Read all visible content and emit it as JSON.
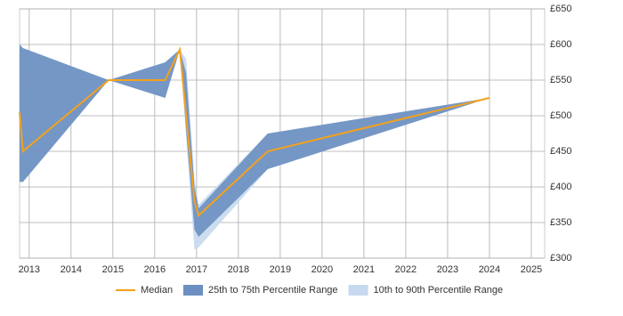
{
  "chart_data": {
    "type": "band-line",
    "x": [
      2012.77,
      2012.85,
      2014.9,
      2016.25,
      2016.6,
      2016.75,
      2016.95,
      2017.05,
      2018.7,
      2024.0
    ],
    "bands": [
      {
        "name": "10th to 90th Percentile Range",
        "color": "#c6d9ee",
        "lower": [
          407,
          407,
          550,
          525,
          593,
          470,
          312,
          315,
          425,
          525
        ],
        "upper": [
          600,
          595,
          550,
          575,
          593,
          580,
          410,
          375,
          475,
          525
        ]
      },
      {
        "name": "25th to 75th Percentile Range",
        "color": "#6b8fc0",
        "lower": [
          407,
          407,
          550,
          525,
          593,
          480,
          340,
          330,
          425,
          525
        ],
        "upper": [
          600,
          595,
          550,
          575,
          593,
          560,
          400,
          370,
          475,
          525
        ]
      }
    ],
    "series": [
      {
        "name": "Median",
        "color": "#f4a11c",
        "values": [
          505,
          450,
          550,
          550,
          593,
          500,
          380,
          360,
          450,
          525
        ]
      }
    ],
    "xlim": [
      2012.77,
      2025.32
    ],
    "xticks": [
      2013,
      2014,
      2015,
      2016,
      2017,
      2018,
      2019,
      2020,
      2021,
      2022,
      2023,
      2024,
      2025
    ],
    "ylim": [
      300,
      650
    ],
    "yticks": [
      {
        "value": 300,
        "label": "£300"
      },
      {
        "value": 350,
        "label": "£350"
      },
      {
        "value": 400,
        "label": "£400"
      },
      {
        "value": 450,
        "label": "£450"
      },
      {
        "value": 500,
        "label": "£500"
      },
      {
        "value": 550,
        "label": "£550"
      },
      {
        "value": 600,
        "label": "£600"
      },
      {
        "value": 650,
        "label": "£650"
      }
    ],
    "grid": true
  }
}
